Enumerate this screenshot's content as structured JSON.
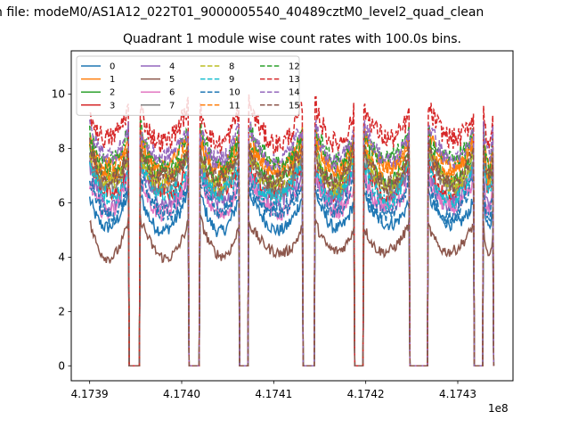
{
  "chart_data": {
    "type": "line",
    "suptitle": "n file: modeM0/AS1A12_022T01_9000005540_40489cztM0_level2_quad_clean",
    "title": "Quadrant 1 module wise count rates with 100.0s bins.",
    "xlabel": "",
    "ylabel": "",
    "x_offset_label": "1e8",
    "xlim": [
      4.17388,
      4.17436
    ],
    "ylim": [
      -0.55,
      11.6
    ],
    "x_ticks": [
      4.1739,
      4.174,
      4.1741,
      4.1742,
      4.1743
    ],
    "x_tick_labels": [
      "4.1739",
      "4.1740",
      "4.1741",
      "4.1742",
      "4.1743"
    ],
    "y_ticks": [
      0,
      2,
      4,
      6,
      8,
      10
    ],
    "y_tick_labels": [
      "0",
      "2",
      "4",
      "6",
      "8",
      "10"
    ],
    "grid": false,
    "legend_position": "top-left",
    "legend_columns": 4,
    "segments": [
      [
        4.1739,
        4.173943
      ],
      [
        4.173955,
        4.174008
      ],
      [
        4.17402,
        4.174063
      ],
      [
        4.174073,
        4.174132
      ],
      [
        4.174145,
        4.174188
      ],
      [
        4.174198,
        4.174248
      ],
      [
        4.174268,
        4.174318
      ],
      [
        4.174328,
        4.174339
      ]
    ],
    "series": [
      {
        "name": "0",
        "color": "#1f77b4",
        "style": "solid",
        "mean": 5.4,
        "noise": 0.25
      },
      {
        "name": "1",
        "color": "#ff7f0e",
        "style": "solid",
        "mean": 7.6,
        "noise": 0.3
      },
      {
        "name": "2",
        "color": "#2ca02c",
        "style": "solid",
        "mean": 7.2,
        "noise": 0.3
      },
      {
        "name": "3",
        "color": "#d62728",
        "style": "solid",
        "mean": 6.6,
        "noise": 0.3
      },
      {
        "name": "4",
        "color": "#9467bd",
        "style": "solid",
        "mean": 6.3,
        "noise": 0.3
      },
      {
        "name": "5",
        "color": "#8c564b",
        "style": "solid",
        "mean": 4.4,
        "noise": 0.2
      },
      {
        "name": "6",
        "color": "#e377c2",
        "style": "solid",
        "mean": 6.0,
        "noise": 0.3
      },
      {
        "name": "7",
        "color": "#7f7f7f",
        "style": "solid",
        "mean": 6.8,
        "noise": 0.3
      },
      {
        "name": "8",
        "color": "#bcbd22",
        "style": "dashed",
        "mean": 7.0,
        "noise": 0.35
      },
      {
        "name": "9",
        "color": "#17becf",
        "style": "dashed",
        "mean": 6.5,
        "noise": 0.35
      },
      {
        "name": "10",
        "color": "#1f77b4",
        "style": "dashed",
        "mean": 5.9,
        "noise": 0.35
      },
      {
        "name": "11",
        "color": "#ff7f0e",
        "style": "dashed",
        "mean": 7.4,
        "noise": 0.35
      },
      {
        "name": "12",
        "color": "#2ca02c",
        "style": "dashed",
        "mean": 7.8,
        "noise": 0.35
      },
      {
        "name": "13",
        "color": "#d62728",
        "style": "dashed",
        "mean": 8.6,
        "noise": 0.4
      },
      {
        "name": "14",
        "color": "#9467bd",
        "style": "dashed",
        "mean": 7.9,
        "noise": 0.35
      },
      {
        "name": "15",
        "color": "#8c564b",
        "style": "dashed",
        "mean": 7.1,
        "noise": 0.35
      }
    ]
  }
}
